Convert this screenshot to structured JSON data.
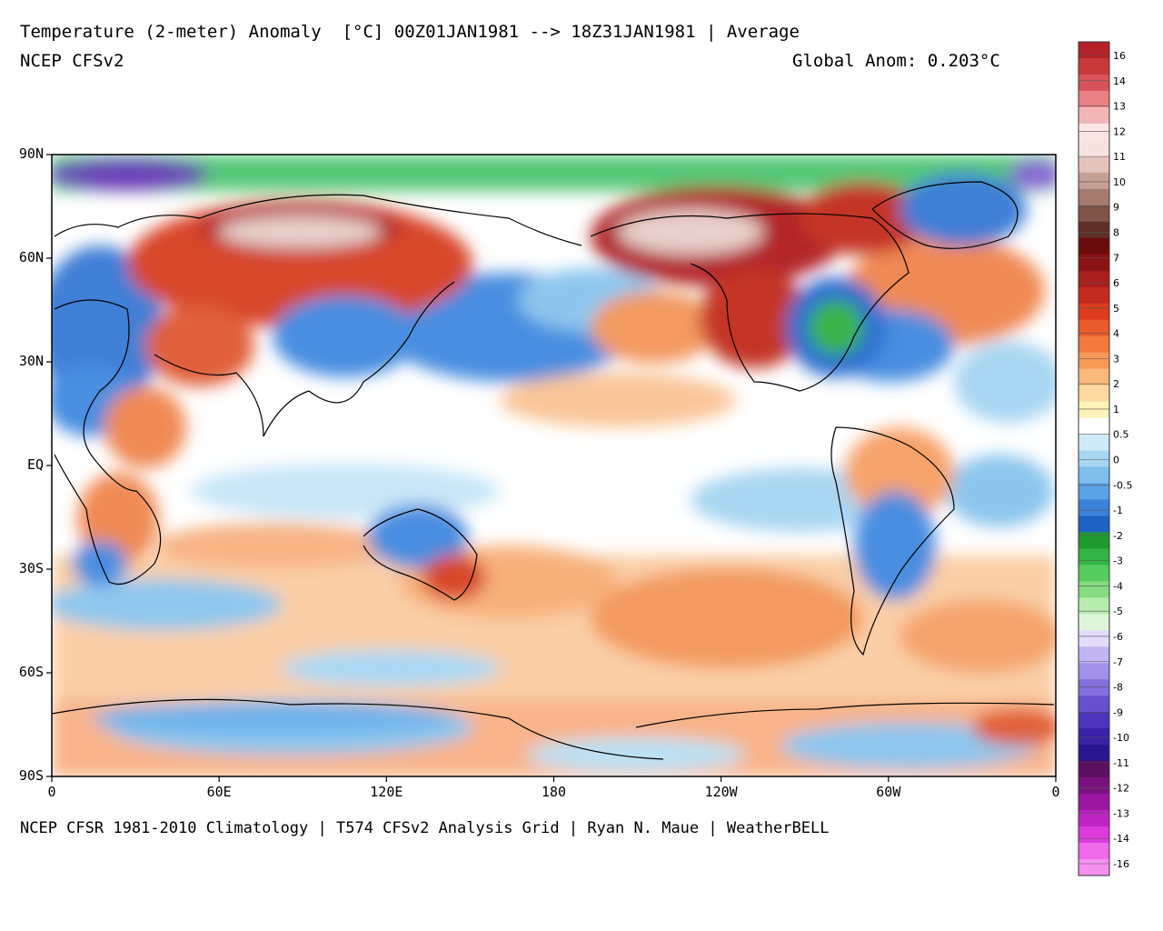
{
  "header": {
    "title": "Temperature (2-meter) Anomaly  [°C] 00Z01JAN1981 --> 18Z31JAN1981 | Average",
    "subtitle": "NCEP CFSv2",
    "global_anom": "Global Anom: 0.203°C"
  },
  "footer": "NCEP CFSR 1981-2010 Climatology | T574 CFSv2 Analysis Grid | Ryan N. Maue | WeatherBELL",
  "axes": {
    "lat_labels": [
      "90N",
      "60N",
      "30N",
      "EQ",
      "30S",
      "60S",
      "90S"
    ],
    "lon_labels": [
      "0",
      "60E",
      "120E",
      "180",
      "120W",
      "60W",
      "0"
    ]
  },
  "colorbar": {
    "labels": [
      "16",
      "14",
      "13",
      "12",
      "11",
      "10",
      "9",
      "8",
      "7",
      "6",
      "5",
      "4",
      "3",
      "2",
      "1",
      "0.5",
      "0",
      "-0.5",
      "-1",
      "-2",
      "-3",
      "-4",
      "-5",
      "-6",
      "-7",
      "-8",
      "-9",
      "-10",
      "-11",
      "-12",
      "-13",
      "-14",
      "-16"
    ]
  },
  "colors": {
    "warm_max": "#b8202a",
    "warm": "#e8562a",
    "mild": "#f7a26a",
    "light_warm": "#fbd8a8",
    "neutral": "#ffffff",
    "light_cool": "#b9e2f5",
    "cool": "#6fb3ea",
    "cold": "#2f6fd0",
    "green": "#3bb54a",
    "purple": "#8a56c8"
  }
}
